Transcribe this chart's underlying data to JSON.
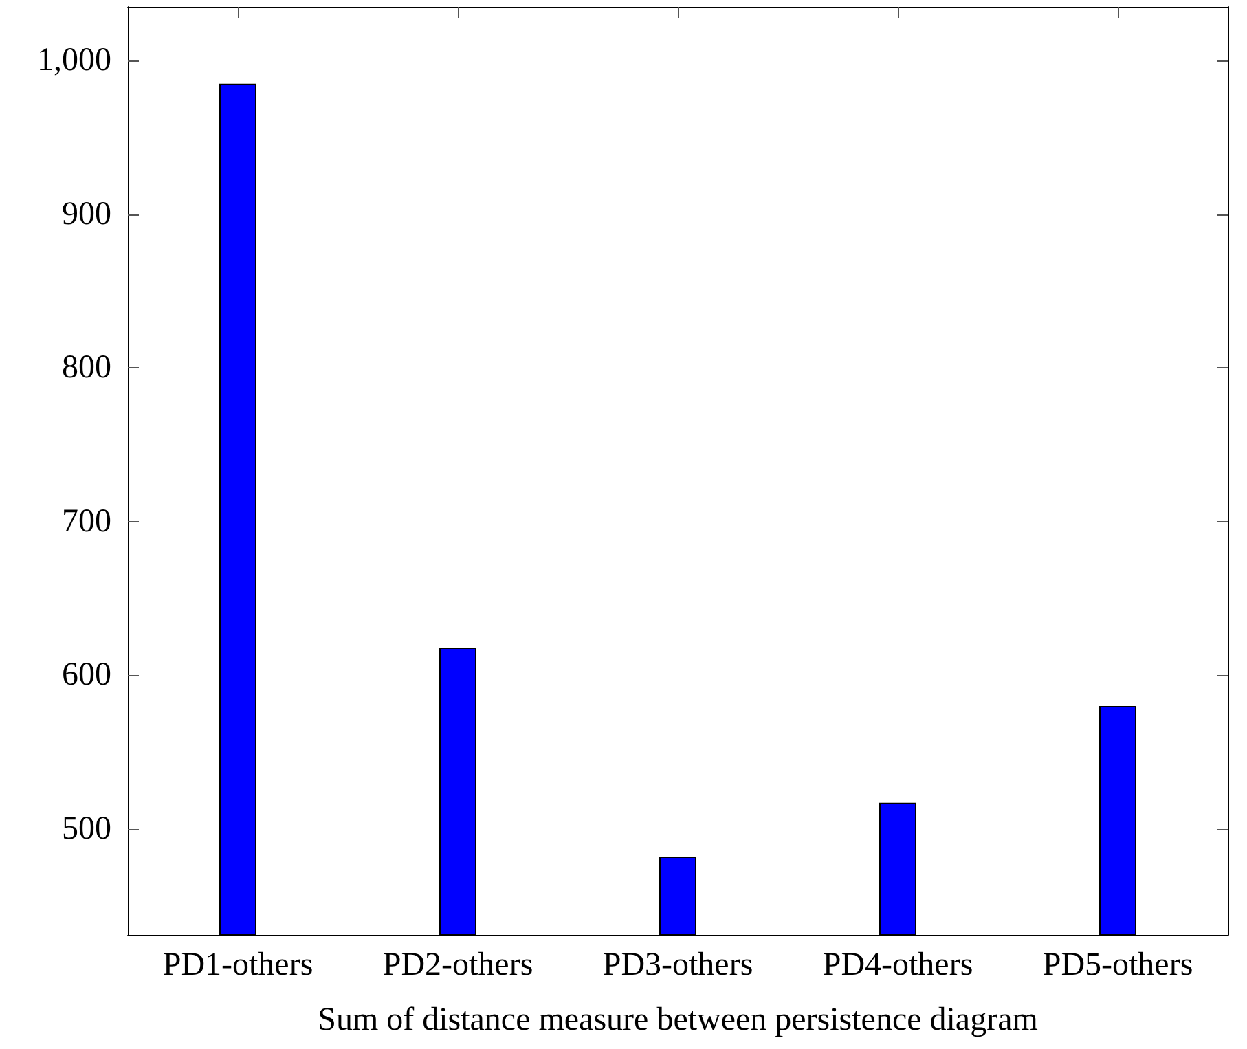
{
  "chart_data": {
    "type": "bar",
    "xlabel": "Sum of distance measure between persistence diagram",
    "categories": [
      "PD1-others",
      "PD2-others",
      "PD3-others",
      "PD4-others",
      "PD5-others"
    ],
    "values": [
      985,
      618,
      482,
      517,
      580
    ],
    "color": "#0000ff",
    "ylim": [
      431,
      1035
    ],
    "yticks": [
      500,
      600,
      700,
      800,
      900,
      {
        "value": 1000,
        "label": "1,000"
      }
    ],
    "grid": false
  }
}
